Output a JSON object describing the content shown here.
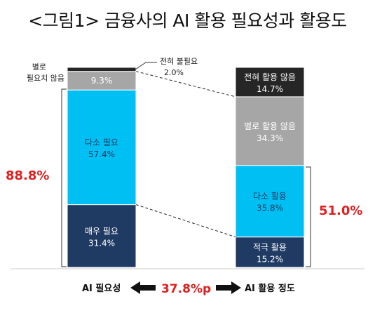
{
  "title": "<그림1> 금융사의 AI 활용 필요성과 활용도",
  "chart_data": {
    "type": "bar",
    "stacked": true,
    "categories": [
      "AI 필요성",
      "AI 활용 정도"
    ],
    "bars": [
      {
        "category": "AI 필요성",
        "segments": [
          {
            "label": "매우 필요",
            "value": 31.4,
            "value_text": "31.4%",
            "color": "#1f3a63",
            "text_color": "#ffffff"
          },
          {
            "label": "다소 필요",
            "value": 57.4,
            "value_text": "57.4%",
            "color": "#00c0f3",
            "text_color": "#1f3a63"
          },
          {
            "label": "별로 필요치 않음",
            "value": 9.3,
            "value_text": "9.3%",
            "color": "#a6a6a6",
            "text_color": "#ffffff"
          },
          {
            "label": "전혀 불필요",
            "value": 2.0,
            "value_text": "2.0%",
            "color": "#262626",
            "text_color": "#ffffff"
          }
        ]
      },
      {
        "category": "AI 활용 정도",
        "segments": [
          {
            "label": "적극 활용",
            "value": 15.2,
            "value_text": "15.2%",
            "color": "#1f3a63",
            "text_color": "#ffffff"
          },
          {
            "label": "다소 활용",
            "value": 35.8,
            "value_text": "35.8%",
            "color": "#00c0f3",
            "text_color": "#1f3a63"
          },
          {
            "label": "별로 활용 않음",
            "value": 34.3,
            "value_text": "34.3%",
            "color": "#a6a6a6",
            "text_color": "#ffffff"
          },
          {
            "label": "전혀 활용 않음",
            "value": 14.7,
            "value_text": "14.7%",
            "color": "#262626",
            "text_color": "#ffffff"
          }
        ]
      }
    ],
    "outside_labels": {
      "left_top_line1": "별로",
      "left_top_line2": "필요치 않음",
      "top_right_name": "전혀 불필요",
      "top_right_value": "2.0%"
    },
    "annotations": {
      "need_total": "88.8%",
      "use_total": "51.0%",
      "gap": "37.8%p",
      "left_caption": "AI 필요성",
      "right_caption": "AI 활용 정도"
    }
  }
}
